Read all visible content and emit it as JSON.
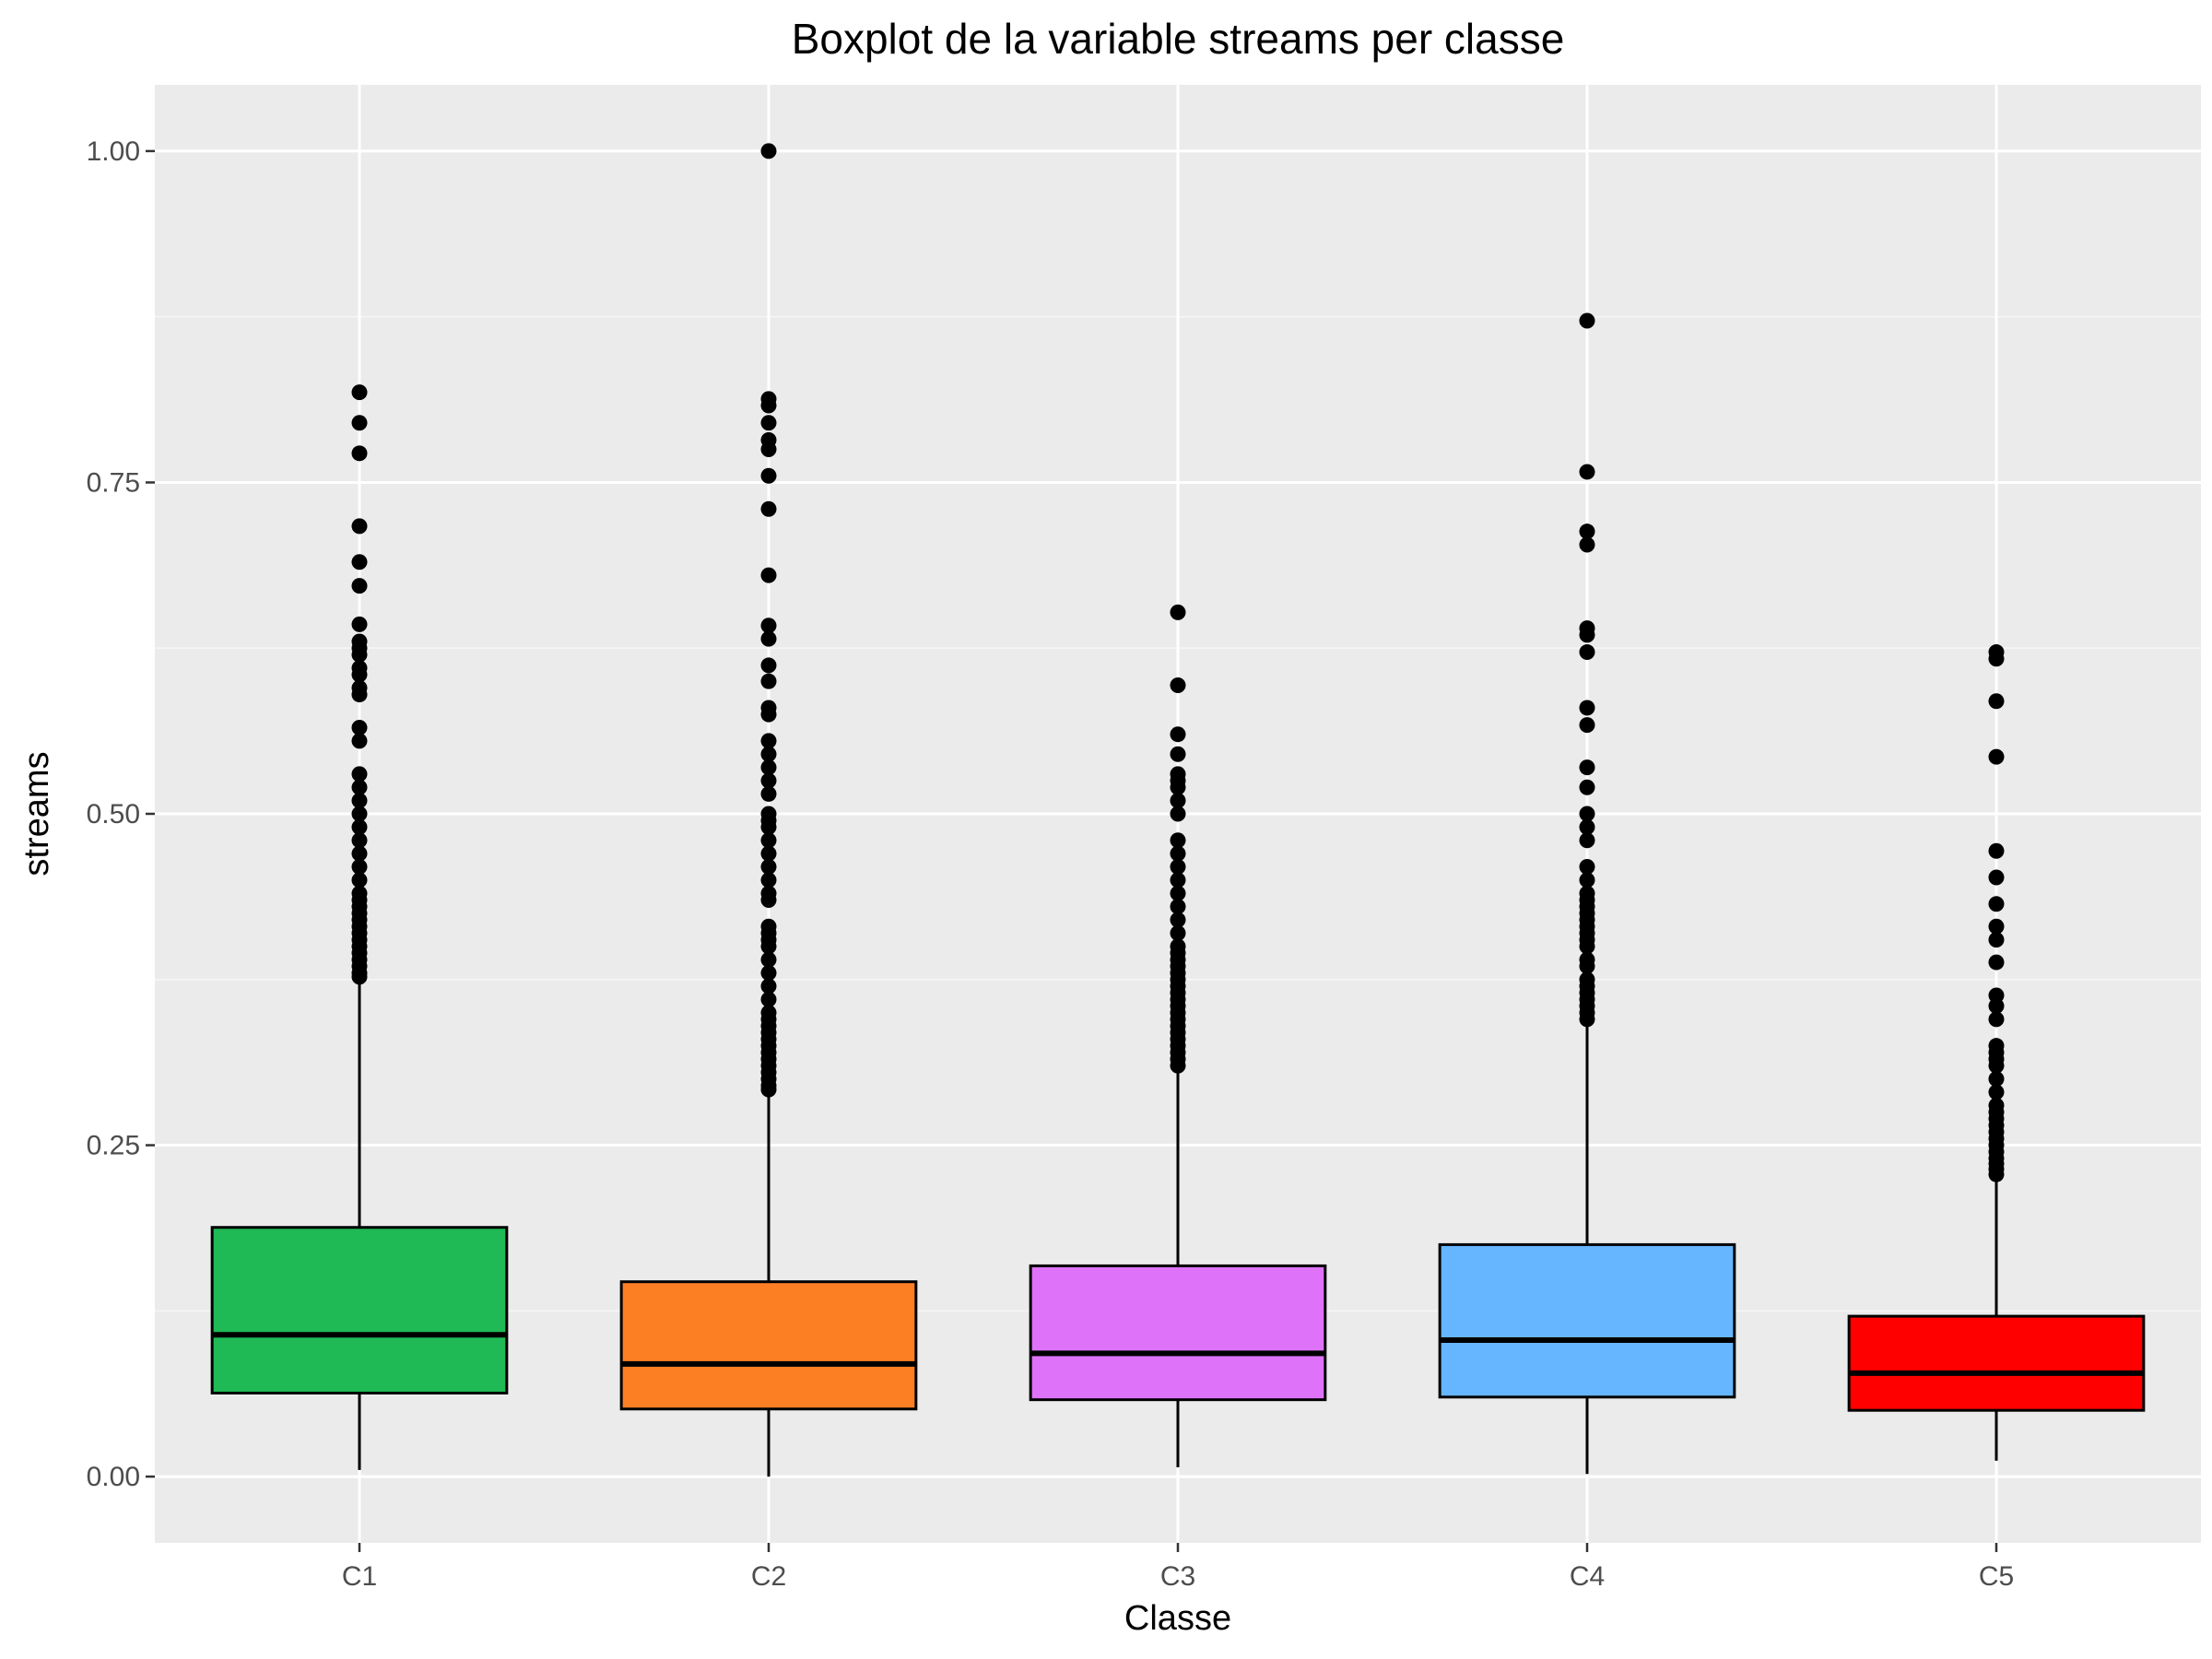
{
  "chart_data": {
    "type": "boxplot",
    "title": "Boxplot de la variable streams per classe",
    "xlabel": "Classe",
    "ylabel": "streams",
    "ylim": [
      -0.05,
      1.05
    ],
    "y_ticks": [
      0.0,
      0.25,
      0.5,
      0.75,
      1.0
    ],
    "y_tick_labels": [
      "0.00",
      "0.25",
      "0.50",
      "0.75",
      "1.00"
    ],
    "grid": true,
    "legend": "none",
    "categories": [
      "C1",
      "C2",
      "C3",
      "C4",
      "C5"
    ],
    "boxes": [
      {
        "category": "C1",
        "color": "#1fba55",
        "whisker_low": 0.005,
        "q1": 0.063,
        "median": 0.107,
        "q3": 0.188,
        "whisker_high": 0.373,
        "outliers": [
          0.377,
          0.38,
          0.385,
          0.39,
          0.395,
          0.4,
          0.405,
          0.41,
          0.415,
          0.42,
          0.425,
          0.43,
          0.435,
          0.44,
          0.45,
          0.46,
          0.47,
          0.48,
          0.49,
          0.5,
          0.51,
          0.52,
          0.53,
          0.555,
          0.565,
          0.59,
          0.595,
          0.605,
          0.61,
          0.62,
          0.625,
          0.63,
          0.643,
          0.672,
          0.69,
          0.717,
          0.772,
          0.795,
          0.818
        ]
      },
      {
        "category": "C2",
        "color": "#fc7f24",
        "whisker_low": 0.0,
        "q1": 0.051,
        "median": 0.085,
        "q3": 0.147,
        "whisker_high": 0.29,
        "outliers": [
          0.292,
          0.295,
          0.3,
          0.305,
          0.31,
          0.315,
          0.32,
          0.325,
          0.33,
          0.335,
          0.34,
          0.345,
          0.35,
          0.36,
          0.37,
          0.38,
          0.39,
          0.4,
          0.405,
          0.41,
          0.415,
          0.435,
          0.44,
          0.45,
          0.46,
          0.47,
          0.48,
          0.49,
          0.495,
          0.5,
          0.515,
          0.525,
          0.535,
          0.545,
          0.555,
          0.575,
          0.58,
          0.6,
          0.612,
          0.632,
          0.642,
          0.68,
          0.73,
          0.755,
          0.775,
          0.782,
          0.795,
          0.808,
          0.813,
          1.0
        ]
      },
      {
        "category": "C3",
        "color": "#de73fa",
        "whisker_low": 0.007,
        "q1": 0.058,
        "median": 0.093,
        "q3": 0.159,
        "whisker_high": 0.308,
        "outliers": [
          0.31,
          0.315,
          0.32,
          0.325,
          0.33,
          0.335,
          0.34,
          0.345,
          0.35,
          0.355,
          0.36,
          0.365,
          0.37,
          0.375,
          0.38,
          0.385,
          0.39,
          0.395,
          0.4,
          0.41,
          0.42,
          0.43,
          0.44,
          0.45,
          0.46,
          0.47,
          0.48,
          0.5,
          0.51,
          0.52,
          0.525,
          0.53,
          0.545,
          0.56,
          0.597,
          0.652
        ]
      },
      {
        "category": "C4",
        "color": "#66b5ff",
        "whisker_low": 0.002,
        "q1": 0.06,
        "median": 0.103,
        "q3": 0.175,
        "whisker_high": 0.343,
        "outliers": [
          0.345,
          0.35,
          0.355,
          0.36,
          0.365,
          0.37,
          0.375,
          0.385,
          0.39,
          0.4,
          0.405,
          0.41,
          0.415,
          0.42,
          0.425,
          0.43,
          0.435,
          0.44,
          0.45,
          0.46,
          0.48,
          0.49,
          0.5,
          0.52,
          0.535,
          0.567,
          0.58,
          0.622,
          0.635,
          0.64,
          0.703,
          0.713,
          0.758,
          0.872
        ]
      },
      {
        "category": "C5",
        "color": "#ff0000",
        "whisker_low": 0.012,
        "q1": 0.05,
        "median": 0.078,
        "q3": 0.121,
        "whisker_high": 0.225,
        "outliers": [
          0.228,
          0.232,
          0.236,
          0.24,
          0.245,
          0.25,
          0.255,
          0.26,
          0.265,
          0.27,
          0.275,
          0.28,
          0.29,
          0.3,
          0.31,
          0.315,
          0.32,
          0.325,
          0.345,
          0.355,
          0.363,
          0.388,
          0.405,
          0.415,
          0.432,
          0.452,
          0.472,
          0.543,
          0.585,
          0.617,
          0.622
        ]
      }
    ]
  },
  "colors": {
    "panel_background": "#ebebeb",
    "grid_major": "#ffffff",
    "grid_minor": "#f5f5f5",
    "outline": "#000000"
  }
}
